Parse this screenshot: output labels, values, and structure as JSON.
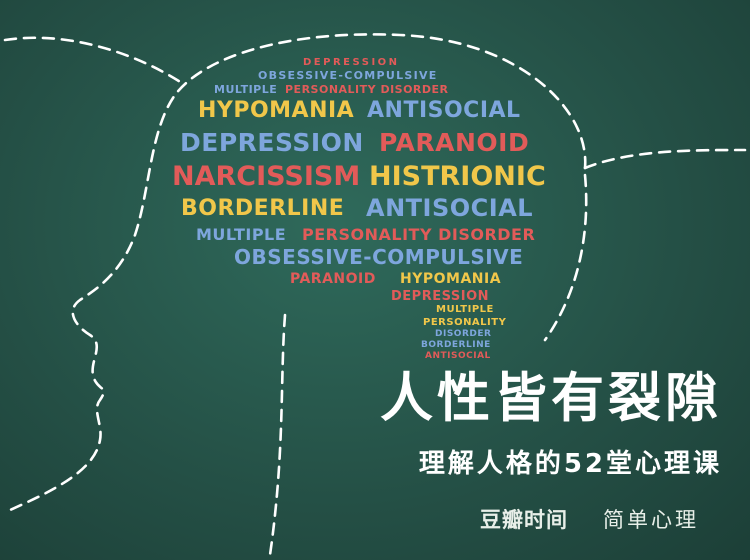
{
  "title": "人性皆有裂隙",
  "subtitle": "理解人格的52堂心理课",
  "brands": [
    "豆瓣时间",
    "简单心理"
  ],
  "colors": {
    "red": "#e25b59",
    "blue": "#7ea6dd",
    "yellow": "#f1c74a",
    "background": "#2a5a4e"
  },
  "word_cloud": [
    {
      "text": "DEPRESSION",
      "color": "red"
    },
    {
      "text": "OBSESSIVE-COMPULSIVE",
      "color": "blue"
    },
    {
      "text": "MULTIPLE",
      "color": "blue"
    },
    {
      "text": "PERSONALITY DISORDER",
      "color": "red"
    },
    {
      "text": "HYPOMANIA",
      "color": "yellow"
    },
    {
      "text": "ANTISOCIAL",
      "color": "blue"
    },
    {
      "text": "DEPRESSION",
      "color": "blue"
    },
    {
      "text": "PARANOID",
      "color": "red"
    },
    {
      "text": "NARCISSISM",
      "color": "red"
    },
    {
      "text": "HISTRIONIC",
      "color": "yellow"
    },
    {
      "text": "BORDERLINE",
      "color": "yellow"
    },
    {
      "text": "ANTISOCIAL",
      "color": "blue"
    },
    {
      "text": "MULTIPLE",
      "color": "blue"
    },
    {
      "text": "PERSONALITY DISORDER",
      "color": "red"
    },
    {
      "text": "OBSESSIVE-COMPULSIVE",
      "color": "blue"
    },
    {
      "text": "PARANOID",
      "color": "red"
    },
    {
      "text": "HYPOMANIA",
      "color": "yellow"
    },
    {
      "text": "DEPRESSION",
      "color": "red"
    },
    {
      "text": "MULTIPLE",
      "color": "yellow"
    },
    {
      "text": "PERSONALITY",
      "color": "yellow"
    },
    {
      "text": "DISORDER",
      "color": "blue"
    },
    {
      "text": "BORDERLINE",
      "color": "blue"
    },
    {
      "text": "ANTISOCIAL",
      "color": "red"
    }
  ]
}
